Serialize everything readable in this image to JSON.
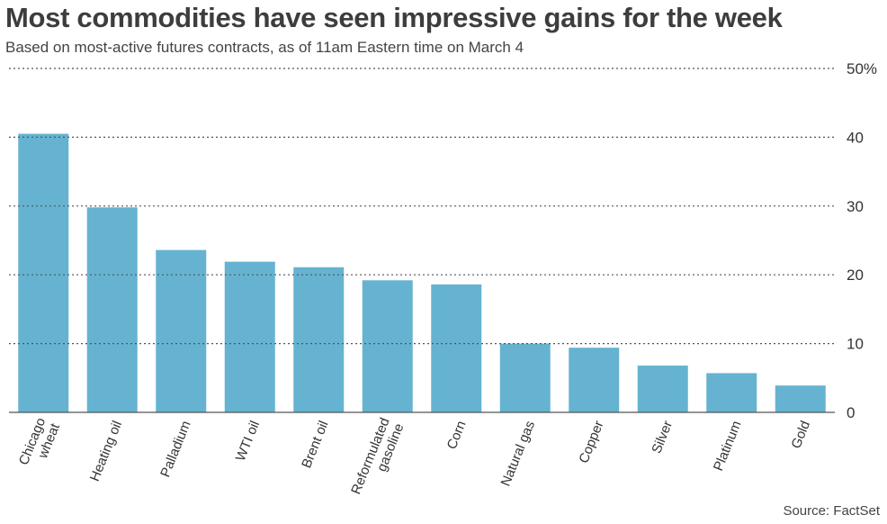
{
  "title": "Most commodities have seen impressive gains for the week",
  "subtitle": "Based on most-active futures contracts, as of 11am Eastern time on March 4",
  "source": "Source: FactSet",
  "colors": {
    "bar": "#65b3d1",
    "grid": "#555555",
    "text": "#333333"
  },
  "chart_data": {
    "type": "bar",
    "title": "Most commodities have seen impressive gains for the week",
    "subtitle": "Based on most-active futures contracts, as of 11am Eastern time on March 4",
    "categories": [
      [
        "Chicago",
        "wheat"
      ],
      [
        "Heating oil"
      ],
      [
        "Palladium"
      ],
      [
        "WTI oil"
      ],
      [
        "Brent oil"
      ],
      [
        "Reformulated",
        "gasoline"
      ],
      [
        "Corn"
      ],
      [
        "Natural gas"
      ],
      [
        "Copper"
      ],
      [
        "Silver"
      ],
      [
        "Platinum"
      ],
      [
        "Gold"
      ]
    ],
    "values": [
      40.5,
      29.8,
      23.6,
      21.9,
      21.1,
      19.2,
      18.6,
      10.0,
      9.4,
      6.8,
      5.7,
      3.9
    ],
    "ylim": [
      0,
      50
    ],
    "yticks": [
      0,
      10,
      20,
      30,
      40,
      50
    ],
    "ytick_labels": [
      "0",
      "10",
      "20",
      "30",
      "40",
      "50%"
    ],
    "yaxis_side": "right",
    "grid": true,
    "xlabel": "",
    "ylabel": ""
  }
}
